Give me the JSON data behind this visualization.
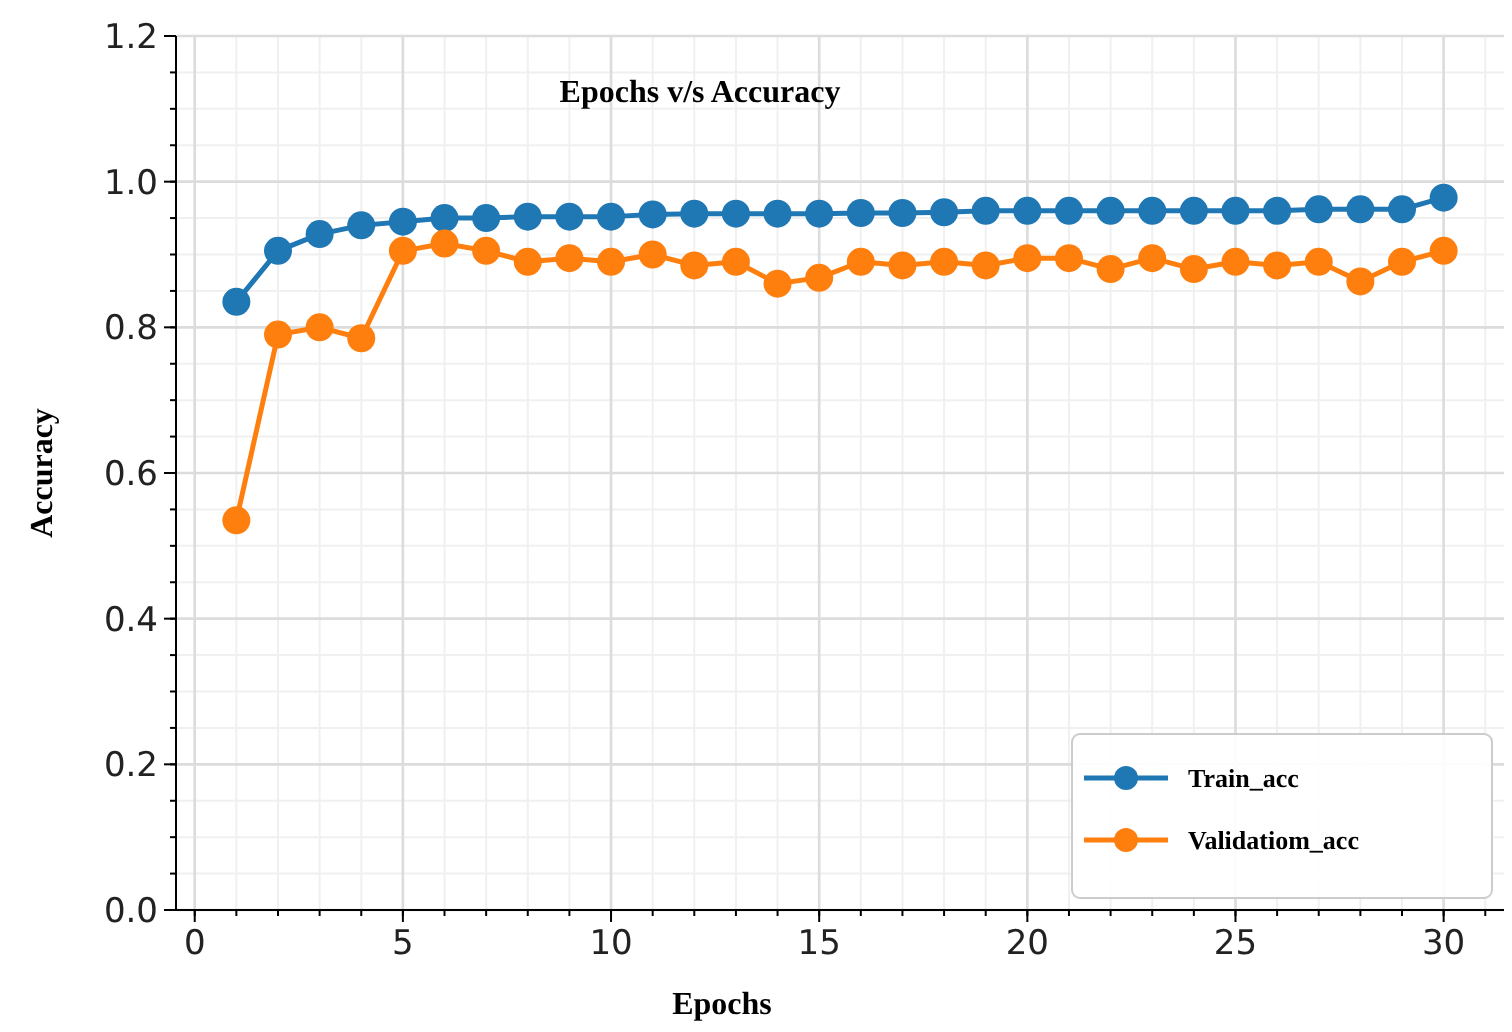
{
  "chart_data": {
    "type": "line",
    "title": "Epochs v/s Accuracy",
    "xlabel": "Epochs",
    "ylabel": "Accuracy",
    "x": [
      1,
      2,
      3,
      4,
      5,
      6,
      7,
      8,
      9,
      10,
      11,
      12,
      13,
      14,
      15,
      16,
      17,
      18,
      19,
      20,
      21,
      22,
      23,
      24,
      25,
      26,
      27,
      28,
      29,
      30
    ],
    "series": [
      {
        "name": "Train_acc",
        "color": "#1f77b4",
        "values": [
          0.835,
          0.905,
          0.928,
          0.94,
          0.945,
          0.95,
          0.95,
          0.952,
          0.952,
          0.952,
          0.955,
          0.956,
          0.956,
          0.956,
          0.956,
          0.957,
          0.957,
          0.958,
          0.96,
          0.96,
          0.96,
          0.96,
          0.96,
          0.96,
          0.96,
          0.96,
          0.962,
          0.962,
          0.962,
          0.978
        ]
      },
      {
        "name": "Validatiom_acc",
        "color": "#ff7f0e",
        "values": [
          0.535,
          0.79,
          0.8,
          0.785,
          0.905,
          0.915,
          0.905,
          0.89,
          0.895,
          0.89,
          0.9,
          0.885,
          0.89,
          0.86,
          0.868,
          0.89,
          0.885,
          0.89,
          0.885,
          0.895,
          0.895,
          0.88,
          0.895,
          0.88,
          0.89,
          0.885,
          0.89,
          0.863,
          0.89,
          0.905
        ]
      }
    ],
    "xlim": [
      -0.45,
      31.45
    ],
    "ylim": [
      0,
      1.2
    ],
    "xticks": [
      0,
      5,
      10,
      15,
      20,
      25,
      30
    ],
    "yticks": [
      {
        "value": 0,
        "label": "0.0"
      },
      {
        "value": 0.2,
        "label": "0.2"
      },
      {
        "value": 0.4,
        "label": "0.4"
      },
      {
        "value": 0.6,
        "label": "0.6"
      },
      {
        "value": 0.8,
        "label": "0.8"
      },
      {
        "value": 1,
        "label": "1.0"
      },
      {
        "value": 1.2,
        "label": "1.2"
      }
    ],
    "grid": true,
    "legend": "bottom right",
    "marker": "circle",
    "line_style": "solid"
  }
}
